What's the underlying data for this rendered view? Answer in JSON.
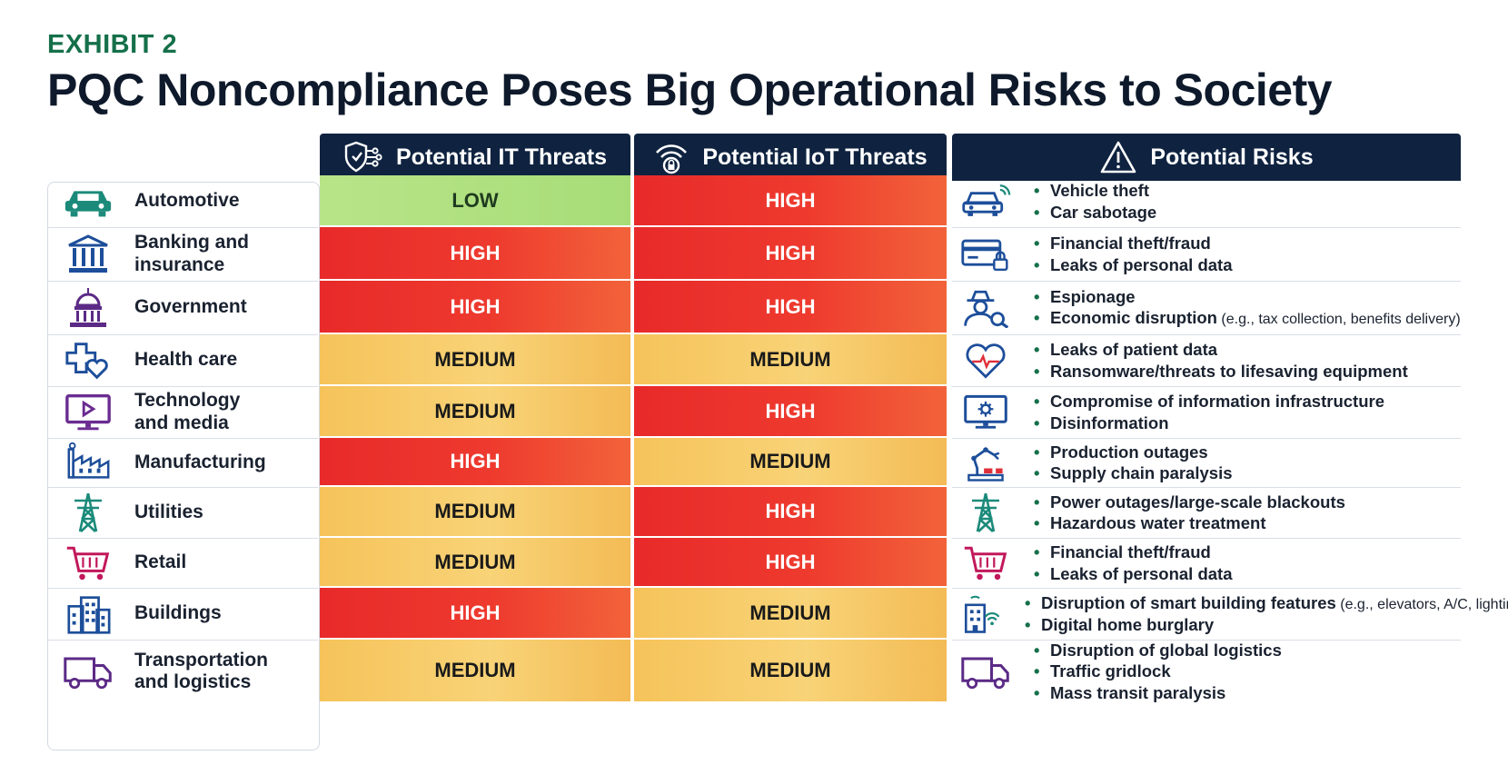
{
  "exhibit": "EXHIBIT 2",
  "title": "PQC Noncompliance Poses Big Operational Risks to Society",
  "headers": {
    "it": "Potential IT Threats",
    "iot": "Potential IoT Threats",
    "risks": "Potential Risks"
  },
  "rows": [
    {
      "industry": "Automotive",
      "it": "LOW",
      "iot": "HIGH",
      "risks": [
        {
          "text": "Vehicle theft",
          "note": ""
        },
        {
          "text": "Car sabotage",
          "note": ""
        }
      ]
    },
    {
      "industry": "Banking and insurance",
      "it": "HIGH",
      "iot": "HIGH",
      "risks": [
        {
          "text": "Financial theft/fraud",
          "note": ""
        },
        {
          "text": "Leaks of personal data",
          "note": ""
        }
      ]
    },
    {
      "industry": "Government",
      "it": "HIGH",
      "iot": "HIGH",
      "risks": [
        {
          "text": "Espionage",
          "note": ""
        },
        {
          "text": "Economic disruption",
          "note": " (e.g., tax collection, benefits delivery)"
        }
      ]
    },
    {
      "industry": "Health care",
      "it": "MEDIUM",
      "iot": "MEDIUM",
      "risks": [
        {
          "text": "Leaks of patient data",
          "note": ""
        },
        {
          "text": "Ransomware/threats to lifesaving equipment",
          "note": ""
        }
      ]
    },
    {
      "industry": "Technology and media",
      "it": "MEDIUM",
      "iot": "HIGH",
      "risks": [
        {
          "text": "Compromise of information infrastructure",
          "note": ""
        },
        {
          "text": "Disinformation",
          "note": ""
        }
      ]
    },
    {
      "industry": "Manufacturing",
      "it": "HIGH",
      "iot": "MEDIUM",
      "risks": [
        {
          "text": "Production outages",
          "note": ""
        },
        {
          "text": "Supply chain paralysis",
          "note": ""
        }
      ]
    },
    {
      "industry": "Utilities",
      "it": "MEDIUM",
      "iot": "HIGH",
      "risks": [
        {
          "text": "Power outages/large-scale blackouts",
          "note": ""
        },
        {
          "text": "Hazardous water treatment",
          "note": ""
        }
      ]
    },
    {
      "industry": "Retail",
      "it": "MEDIUM",
      "iot": "HIGH",
      "risks": [
        {
          "text": "Financial theft/fraud",
          "note": ""
        },
        {
          "text": "Leaks of personal data",
          "note": ""
        }
      ]
    },
    {
      "industry": "Buildings",
      "it": "HIGH",
      "iot": "MEDIUM",
      "risks": [
        {
          "text": "Disruption of smart building features",
          "note": " (e.g., elevators, A/C, lighting)"
        },
        {
          "text": "Digital home burglary",
          "note": ""
        }
      ]
    },
    {
      "industry": "Transportation and logistics",
      "it": "MEDIUM",
      "iot": "MEDIUM",
      "risks": [
        {
          "text": "Disruption of global logistics",
          "note": ""
        },
        {
          "text": "Traffic gridlock",
          "note": ""
        },
        {
          "text": "Mass transit paralysis",
          "note": ""
        }
      ]
    }
  ],
  "icons": {
    "industry": [
      "car-icon",
      "bank-icon",
      "capitol-icon",
      "health-cross-heart-icon",
      "monitor-play-icon",
      "factory-icon",
      "power-tower-icon",
      "shopping-cart-icon",
      "office-building-icon",
      "delivery-truck-icon"
    ],
    "risk": [
      "connected-car-icon",
      "card-lock-icon",
      "spy-magnifier-icon",
      "heart-pulse-icon",
      "monitor-gear-icon",
      "robot-arm-icon",
      "power-tower-icon",
      "shopping-cart-icon",
      "smart-building-icon",
      "delivery-truck-icon"
    ]
  },
  "colors": {
    "HIGH": "#e82a2a",
    "MEDIUM": "#f6c35a",
    "LOW": "#a7dd78",
    "header": "#0f2340",
    "exhibit": "#15704a"
  }
}
